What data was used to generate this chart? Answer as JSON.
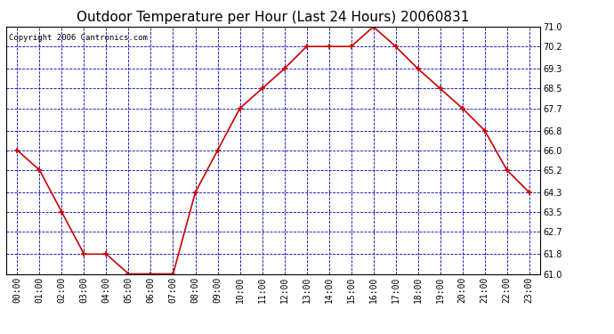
{
  "title": "Outdoor Temperature per Hour (Last 24 Hours) 20060831",
  "copyright": "Copyright 2006 Cantronics.com",
  "hours": [
    "00:00",
    "01:00",
    "02:00",
    "03:00",
    "04:00",
    "05:00",
    "06:00",
    "07:00",
    "08:00",
    "09:00",
    "10:00",
    "11:00",
    "12:00",
    "13:00",
    "14:00",
    "15:00",
    "16:00",
    "17:00",
    "18:00",
    "19:00",
    "20:00",
    "21:00",
    "22:00",
    "23:00"
  ],
  "temps": [
    66.0,
    65.2,
    63.5,
    61.8,
    61.8,
    61.0,
    61.0,
    61.0,
    64.3,
    66.0,
    67.7,
    68.5,
    69.3,
    70.2,
    70.2,
    70.2,
    71.0,
    70.2,
    69.3,
    68.5,
    67.7,
    66.8,
    65.2,
    64.3
  ],
  "line_color": "#cc0000",
  "marker_color": "#cc0000",
  "bg_color": "#ffffff",
  "plot_bg_color": "#ffffff",
  "grid_color": "#0000bb",
  "axis_label_color": "#000000",
  "title_color": "#000000",
  "ylim": [
    61.0,
    71.0
  ],
  "yticks": [
    61.0,
    61.8,
    62.7,
    63.5,
    64.3,
    65.2,
    66.0,
    66.8,
    67.7,
    68.5,
    69.3,
    70.2,
    71.0
  ],
  "title_fontsize": 11,
  "tick_fontsize": 7,
  "copyright_fontsize": 6.5
}
